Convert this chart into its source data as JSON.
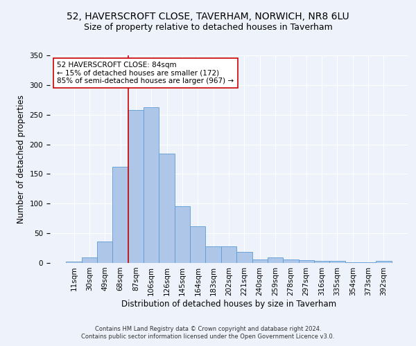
{
  "title1": "52, HAVERSCROFT CLOSE, TAVERHAM, NORWICH, NR8 6LU",
  "title2": "Size of property relative to detached houses in Taverham",
  "xlabel": "Distribution of detached houses by size in Taverham",
  "ylabel": "Number of detached properties",
  "footer1": "Contains HM Land Registry data © Crown copyright and database right 2024.",
  "footer2": "Contains public sector information licensed under the Open Government Licence v3.0.",
  "categories": [
    "11sqm",
    "30sqm",
    "49sqm",
    "68sqm",
    "87sqm",
    "106sqm",
    "126sqm",
    "145sqm",
    "164sqm",
    "183sqm",
    "202sqm",
    "221sqm",
    "240sqm",
    "259sqm",
    "278sqm",
    "297sqm",
    "316sqm",
    "335sqm",
    "354sqm",
    "373sqm",
    "392sqm"
  ],
  "values": [
    2,
    9,
    36,
    162,
    258,
    262,
    184,
    96,
    62,
    28,
    28,
    19,
    6,
    9,
    6,
    5,
    4,
    4,
    1,
    1,
    3
  ],
  "bar_color": "#aec6e8",
  "bar_edge_color": "#5b9bd5",
  "vline_color": "#cc0000",
  "annotation_text": "52 HAVERSCROFT CLOSE: 84sqm\n← 15% of detached houses are smaller (172)\n85% of semi-detached houses are larger (967) →",
  "annotation_box_color": "#ffffff",
  "annotation_box_edge": "#cc0000",
  "ylim": [
    0,
    350
  ],
  "background_color": "#eef2fa",
  "grid_color": "#ffffff",
  "title_fontsize": 10,
  "subtitle_fontsize": 9,
  "tick_fontsize": 7.5,
  "label_fontsize": 8.5,
  "footer_fontsize": 6.0
}
